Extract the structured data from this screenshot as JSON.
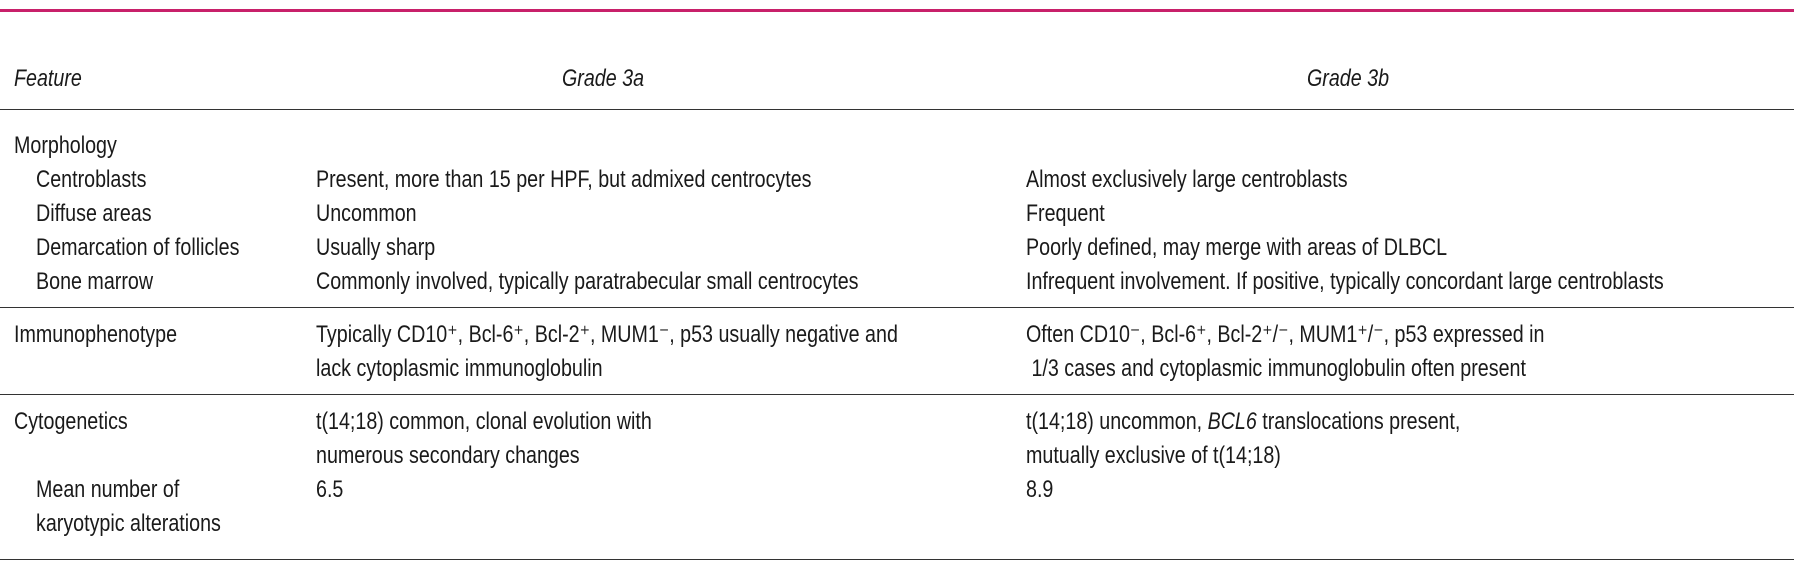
{
  "header": {
    "feature": "Feature",
    "grade3a": "Grade 3a",
    "grade3b": "Grade 3b"
  },
  "sections": [
    {
      "title": [
        "Morphology"
      ],
      "grade3a": [],
      "grade3b": [],
      "rows": [
        {
          "label": [
            "Centroblasts"
          ],
          "grade3a": [
            "Present, more than 15 per HPF, but admixed centrocytes"
          ],
          "grade3b": [
            "Almost exclusively large centroblasts"
          ]
        },
        {
          "label": [
            "Diffuse areas"
          ],
          "grade3a": [
            "Uncommon"
          ],
          "grade3b": [
            "Frequent"
          ]
        },
        {
          "label": [
            "Demarcation of follicles"
          ],
          "grade3a": [
            "Usually sharp"
          ],
          "grade3b": [
            "Poorly defined, may merge with areas of DLBCL"
          ]
        },
        {
          "label": [
            "Bone marrow"
          ],
          "grade3a": [
            "Commonly involved, typically paratrabecular small centrocytes"
          ],
          "grade3b": [
            "Infrequent involvement. If positive, typically concordant large centroblasts"
          ]
        }
      ]
    },
    {
      "title": [
        "Immunophenotype"
      ],
      "grade3a": [
        "Typically CD10⁺, Bcl-6⁺, Bcl-2⁺, MUM1⁻, p53 usually negative and",
        "lack cytoplasmic immunoglobulin"
      ],
      "grade3b": [
        "Often CD10⁻, Bcl-6⁺, Bcl-2⁺/⁻, MUM1⁺/⁻, p53 expressed in",
        " 1/3 cases and cytoplasmic immunoglobulin often present"
      ],
      "rows": []
    },
    {
      "title": [
        "Cytogenetics"
      ],
      "grade3a": [
        "t(14;18) common, clonal evolution with",
        "numerous secondary changes"
      ],
      "grade3b": [
        [
          {
            "text": "t(14;18) uncommon, "
          },
          {
            "text": "BCL6",
            "italic": true
          },
          {
            "text": " translocations present,"
          }
        ],
        "mutually exclusive of t(14;18)"
      ],
      "rows": [
        {
          "label": [
            "Mean number of",
            "karyotypic alterations"
          ],
          "grade3a": [
            "6.5"
          ],
          "grade3b": [
            "8.9"
          ]
        }
      ]
    }
  ]
}
